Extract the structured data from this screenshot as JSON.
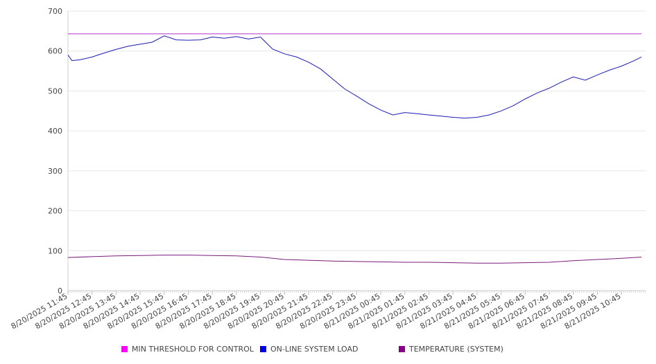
{
  "chart_data": {
    "type": "line",
    "title": "",
    "xlabel": "",
    "ylabel": "",
    "ylim": [
      0,
      700
    ],
    "y_ticks": [
      0,
      100,
      200,
      300,
      400,
      500,
      600,
      700
    ],
    "x_tick_labels": [
      "8/20/2025 11:45",
      "8/20/2025 12:45",
      "8/20/2025 13:45",
      "8/20/2025 14:45",
      "8/20/2025 15:45",
      "8/20/2025 16:45",
      "8/20/2025 17:45",
      "8/20/2025 18:45",
      "8/20/2025 19:45",
      "8/20/2025 20:45",
      "8/20/2025 21:45",
      "8/20/2025 22:45",
      "8/20/2025 23:45",
      "8/21/2025 00:45",
      "8/21/2025 01:45",
      "8/21/2025 02:45",
      "8/21/2025 03:45",
      "8/21/2025 04:45",
      "8/21/2025 05:45",
      "8/21/2025 06:45",
      "8/21/2025 07:45",
      "8/21/2025 08:45",
      "8/21/2025 09:45",
      "8/21/2025 10:45"
    ],
    "grid": "horizontal",
    "legend_position": "bottom",
    "series": [
      {
        "name": "MIN THRESHOLD FOR CONTROL",
        "color": "#ff00ff",
        "line_color": "#b030c8",
        "x": [
          "8/20/2025 11:45",
          "8/21/2025 11:35"
        ],
        "values": [
          643,
          643
        ]
      },
      {
        "name": "ON-LINE SYSTEM LOAD",
        "color": "#0000ee",
        "line_color": "#1a1ab4",
        "x": [
          "8/20/2025 11:45",
          "8/20/2025 11:55",
          "8/20/2025 12:15",
          "8/20/2025 12:45",
          "8/20/2025 13:15",
          "8/20/2025 13:45",
          "8/20/2025 14:15",
          "8/20/2025 14:45",
          "8/20/2025 15:15",
          "8/20/2025 15:45",
          "8/20/2025 16:15",
          "8/20/2025 16:45",
          "8/20/2025 17:15",
          "8/20/2025 17:45",
          "8/20/2025 18:15",
          "8/20/2025 18:45",
          "8/20/2025 19:15",
          "8/20/2025 19:45",
          "8/20/2025 20:15",
          "8/20/2025 20:45",
          "8/20/2025 21:15",
          "8/20/2025 21:45",
          "8/20/2025 22:15",
          "8/20/2025 22:45",
          "8/20/2025 23:15",
          "8/20/2025 23:45",
          "8/21/2025 00:15",
          "8/21/2025 00:45",
          "8/21/2025 01:15",
          "8/21/2025 01:45",
          "8/21/2025 02:15",
          "8/21/2025 02:45",
          "8/21/2025 03:15",
          "8/21/2025 03:45",
          "8/21/2025 04:15",
          "8/21/2025 04:45",
          "8/21/2025 05:15",
          "8/21/2025 05:45",
          "8/21/2025 06:15",
          "8/21/2025 06:45",
          "8/21/2025 07:15",
          "8/21/2025 07:45",
          "8/21/2025 08:15",
          "8/21/2025 08:45",
          "8/21/2025 09:15",
          "8/21/2025 09:45",
          "8/21/2025 10:15",
          "8/21/2025 10:45",
          "8/21/2025 11:15",
          "8/21/2025 11:35"
        ],
        "values": [
          590,
          576,
          578,
          585,
          595,
          604,
          612,
          617,
          622,
          638,
          628,
          627,
          628,
          635,
          632,
          636,
          630,
          635,
          605,
          593,
          585,
          572,
          555,
          530,
          505,
          487,
          468,
          452,
          440,
          446,
          443,
          440,
          437,
          434,
          432,
          434,
          440,
          450,
          463,
          480,
          495,
          507,
          522,
          535,
          527,
          540,
          552,
          562,
          575,
          585
        ]
      },
      {
        "name": "TEMPERATURE (SYSTEM)",
        "color": "#880088",
        "line_color": "#7a1a7a",
        "x": [
          "8/20/2025 11:45",
          "8/20/2025 12:45",
          "8/20/2025 13:45",
          "8/20/2025 14:45",
          "8/20/2025 15:45",
          "8/20/2025 16:45",
          "8/20/2025 17:45",
          "8/20/2025 18:45",
          "8/20/2025 19:45",
          "8/20/2025 20:45",
          "8/20/2025 21:45",
          "8/20/2025 22:45",
          "8/20/2025 23:45",
          "8/21/2025 00:45",
          "8/21/2025 01:45",
          "8/21/2025 02:45",
          "8/21/2025 03:45",
          "8/21/2025 04:45",
          "8/21/2025 05:45",
          "8/21/2025 06:45",
          "8/21/2025 07:45",
          "8/21/2025 08:45",
          "8/21/2025 09:45",
          "8/21/2025 10:45",
          "8/21/2025 11:35"
        ],
        "values": [
          83,
          85,
          87,
          88,
          89,
          89,
          88,
          87,
          84,
          78,
          76,
          74,
          73,
          72,
          71,
          71,
          70,
          69,
          69,
          70,
          71,
          75,
          78,
          81,
          84
        ]
      }
    ]
  }
}
